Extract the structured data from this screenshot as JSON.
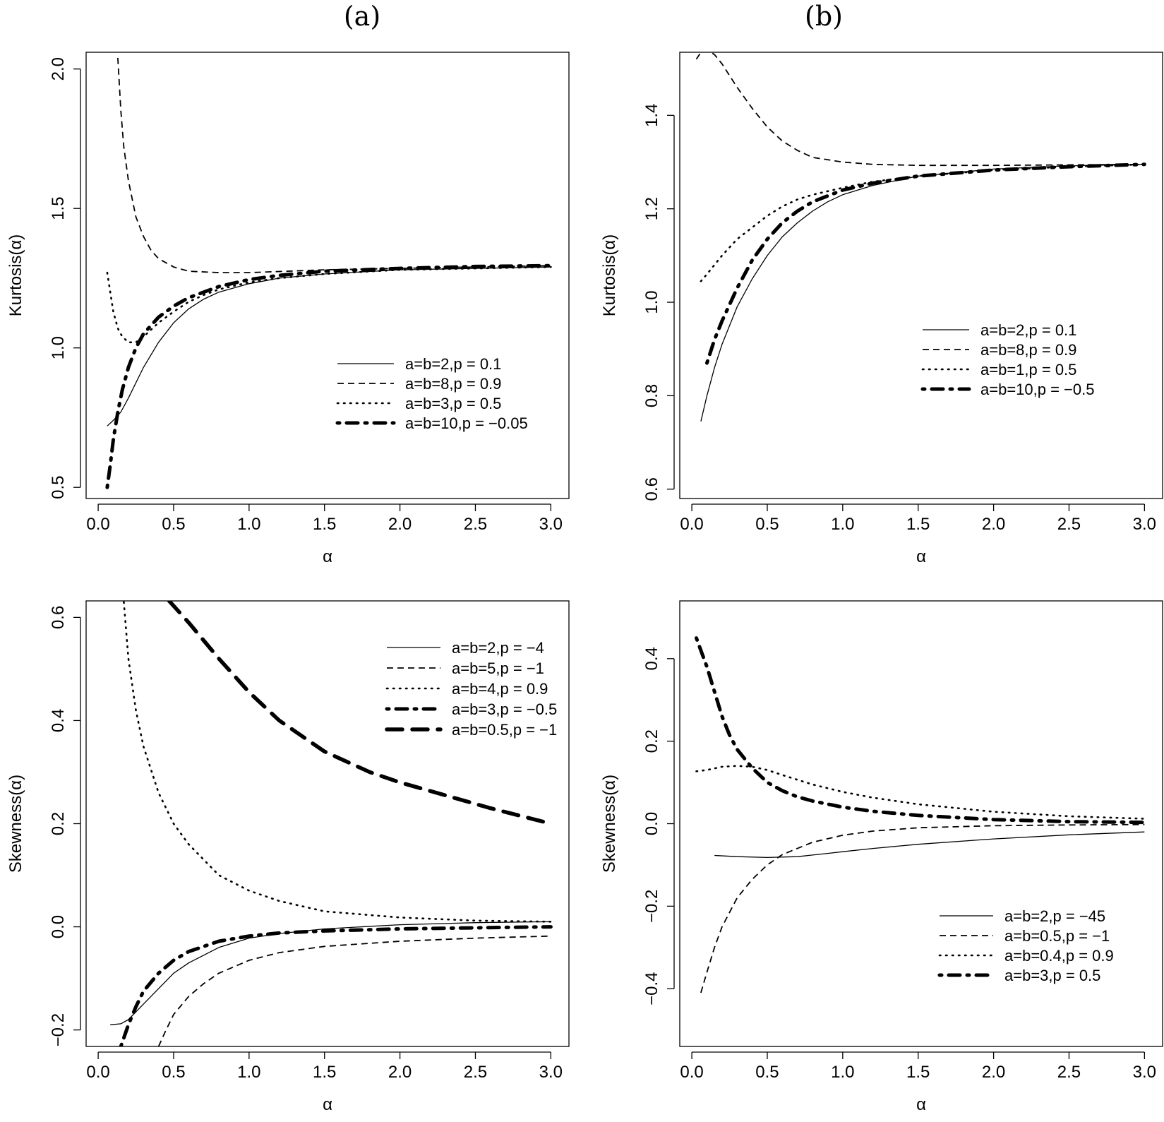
{
  "figure": {
    "panel_titles": [
      "(a)",
      "(b)"
    ]
  },
  "chart_data": [
    {
      "id": "a-top",
      "type": "line",
      "panel": "(a)",
      "xlabel": "α",
      "ylabel": "Kurtosis(α)",
      "xlim": [
        -0.08,
        3.12
      ],
      "ylim": [
        0.46,
        2.06
      ],
      "xticks": [
        "0.0",
        "0.5",
        "1.0",
        "1.5",
        "2.0",
        "2.5",
        "3.0"
      ],
      "yticks": [
        "0.5",
        "1.0",
        "1.5",
        "2.0"
      ],
      "legend_position": "right-middle",
      "series": [
        {
          "name": "a=b=2,p = 0.1",
          "style": "solid",
          "x": [
            0.06,
            0.1,
            0.15,
            0.2,
            0.3,
            0.4,
            0.5,
            0.6,
            0.7,
            0.8,
            1.0,
            1.2,
            1.5,
            2.0,
            2.5,
            3.0
          ],
          "y": [
            0.72,
            0.74,
            0.77,
            0.82,
            0.93,
            1.02,
            1.09,
            1.14,
            1.175,
            1.2,
            1.23,
            1.25,
            1.265,
            1.28,
            1.285,
            1.29
          ]
        },
        {
          "name": "a=b=8,p = 0.9",
          "style": "dashed",
          "x": [
            0.13,
            0.15,
            0.17,
            0.2,
            0.25,
            0.3,
            0.35,
            0.4,
            0.5,
            0.6,
            0.8,
            1.0,
            1.5,
            2.0,
            2.5,
            3.0
          ],
          "y": [
            2.04,
            1.85,
            1.72,
            1.6,
            1.47,
            1.4,
            1.35,
            1.32,
            1.29,
            1.275,
            1.27,
            1.27,
            1.28,
            1.285,
            1.29,
            1.295
          ]
        },
        {
          "name": "a=b=3,p = 0.5",
          "style": "dotted",
          "x": [
            0.06,
            0.08,
            0.1,
            0.13,
            0.16,
            0.2,
            0.25,
            0.3,
            0.4,
            0.5,
            0.6,
            0.7,
            0.8,
            1.0,
            1.2,
            1.5,
            2.0,
            2.5,
            3.0
          ],
          "y": [
            1.27,
            1.2,
            1.13,
            1.07,
            1.04,
            1.02,
            1.02,
            1.04,
            1.09,
            1.13,
            1.165,
            1.19,
            1.21,
            1.235,
            1.25,
            1.265,
            1.28,
            1.285,
            1.29
          ]
        },
        {
          "name": "a=b=10,p = −0.05",
          "style": "dashdot",
          "x": [
            0.06,
            0.08,
            0.1,
            0.13,
            0.16,
            0.2,
            0.25,
            0.3,
            0.4,
            0.5,
            0.6,
            0.7,
            0.8,
            1.0,
            1.2,
            1.5,
            2.0,
            2.5,
            3.0
          ],
          "y": [
            0.5,
            0.58,
            0.67,
            0.77,
            0.85,
            0.93,
            1.0,
            1.05,
            1.11,
            1.15,
            1.18,
            1.2,
            1.22,
            1.245,
            1.26,
            1.275,
            1.285,
            1.292,
            1.295
          ]
        }
      ]
    },
    {
      "id": "b-top",
      "type": "line",
      "panel": "(b)",
      "xlabel": "α",
      "ylabel": "Kurtosis(α)",
      "xlim": [
        -0.08,
        3.12
      ],
      "ylim": [
        0.58,
        1.535
      ],
      "xticks": [
        "0.0",
        "0.5",
        "1.0",
        "1.5",
        "2.0",
        "2.5",
        "3.0"
      ],
      "yticks": [
        "0.6",
        "0.8",
        "1.0",
        "1.2",
        "1.4"
      ],
      "legend_position": "right-middle",
      "series": [
        {
          "name": "a=b=2,p = 0.1",
          "style": "solid",
          "x": [
            0.06,
            0.1,
            0.15,
            0.2,
            0.3,
            0.4,
            0.5,
            0.6,
            0.7,
            0.8,
            0.9,
            1.0,
            1.2,
            1.5,
            2.0,
            2.5,
            3.0
          ],
          "y": [
            0.745,
            0.8,
            0.86,
            0.91,
            0.99,
            1.05,
            1.1,
            1.14,
            1.17,
            1.195,
            1.215,
            1.23,
            1.25,
            1.27,
            1.285,
            1.292,
            1.295
          ]
        },
        {
          "name": "a=b=8,p = 0.9",
          "style": "dashed",
          "x": [
            0.03,
            0.06,
            0.1,
            0.15,
            0.2,
            0.3,
            0.4,
            0.5,
            0.6,
            0.7,
            0.8,
            1.0,
            1.2,
            1.5,
            2.0,
            2.5,
            3.0
          ],
          "y": [
            1.52,
            1.535,
            1.54,
            1.53,
            1.51,
            1.46,
            1.415,
            1.375,
            1.345,
            1.325,
            1.31,
            1.3,
            1.295,
            1.293,
            1.293,
            1.294,
            1.295
          ]
        },
        {
          "name": "a=b=1,p = 0.5",
          "style": "dotted",
          "x": [
            0.06,
            0.1,
            0.15,
            0.2,
            0.3,
            0.4,
            0.5,
            0.6,
            0.7,
            0.8,
            1.0,
            1.2,
            1.5,
            2.0,
            2.5,
            3.0
          ],
          "y": [
            1.045,
            1.06,
            1.08,
            1.1,
            1.135,
            1.16,
            1.185,
            1.205,
            1.22,
            1.23,
            1.245,
            1.258,
            1.27,
            1.283,
            1.29,
            1.295
          ]
        },
        {
          "name": "a=b=10,p = −0.5",
          "style": "dashdot",
          "x": [
            0.1,
            0.15,
            0.2,
            0.3,
            0.4,
            0.5,
            0.6,
            0.7,
            0.8,
            1.0,
            1.2,
            1.5,
            2.0,
            2.5,
            3.0
          ],
          "y": [
            0.87,
            0.92,
            0.96,
            1.03,
            1.09,
            1.135,
            1.17,
            1.195,
            1.215,
            1.24,
            1.255,
            1.27,
            1.283,
            1.29,
            1.295
          ]
        }
      ]
    },
    {
      "id": "a-bottom",
      "type": "line",
      "panel": "(a)",
      "xlabel": "α",
      "ylabel": "Skewness(α)",
      "xlim": [
        -0.08,
        3.12
      ],
      "ylim": [
        -0.232,
        0.632
      ],
      "xticks": [
        "0.0",
        "0.5",
        "1.0",
        "1.5",
        "2.0",
        "2.5",
        "3.0"
      ],
      "yticks": [
        "−0.2",
        "0.0",
        "0.2",
        "0.4",
        "0.6"
      ],
      "legend_position": "top-right",
      "series": [
        {
          "name": "a=b=2,p = −4",
          "style": "solid",
          "x": [
            0.08,
            0.15,
            0.2,
            0.3,
            0.4,
            0.5,
            0.6,
            0.8,
            1.0,
            1.2,
            1.5,
            2.0,
            2.5,
            3.0
          ],
          "y": [
            -0.19,
            -0.188,
            -0.18,
            -0.15,
            -0.12,
            -0.09,
            -0.07,
            -0.04,
            -0.022,
            -0.013,
            -0.004,
            0.004,
            0.008,
            0.01
          ]
        },
        {
          "name": "a=b=5,p = −1",
          "style": "dashed",
          "x": [
            0.4,
            0.45,
            0.5,
            0.6,
            0.7,
            0.8,
            1.0,
            1.2,
            1.5,
            2.0,
            2.5,
            3.0
          ],
          "y": [
            -0.232,
            -0.2,
            -0.17,
            -0.135,
            -0.11,
            -0.09,
            -0.065,
            -0.05,
            -0.038,
            -0.028,
            -0.022,
            -0.018
          ]
        },
        {
          "name": "a=b=4,p = 0.9",
          "style": "dotted",
          "x": [
            0.17,
            0.2,
            0.25,
            0.3,
            0.4,
            0.5,
            0.6,
            0.8,
            1.0,
            1.2,
            1.5,
            2.0,
            2.5,
            3.0
          ],
          "y": [
            0.63,
            0.52,
            0.42,
            0.35,
            0.26,
            0.2,
            0.16,
            0.1,
            0.07,
            0.05,
            0.03,
            0.018,
            0.012,
            0.01
          ]
        },
        {
          "name": "a=b=3,p = −0.5",
          "style": "dashdot",
          "x": [
            0.15,
            0.2,
            0.25,
            0.3,
            0.4,
            0.5,
            0.6,
            0.8,
            1.0,
            1.2,
            1.5,
            2.0,
            2.5,
            3.0
          ],
          "y": [
            -0.232,
            -0.19,
            -0.155,
            -0.125,
            -0.09,
            -0.065,
            -0.048,
            -0.028,
            -0.018,
            -0.012,
            -0.008,
            -0.004,
            -0.002,
            0.0
          ]
        },
        {
          "name": "a=b=0.5,p = −1",
          "style": "longdash",
          "x": [
            0.47,
            0.6,
            0.8,
            1.0,
            1.2,
            1.5,
            1.8,
            2.0,
            2.3,
            2.6,
            2.8,
            3.0
          ],
          "y": [
            0.632,
            0.59,
            0.52,
            0.455,
            0.4,
            0.34,
            0.3,
            0.28,
            0.255,
            0.23,
            0.215,
            0.2
          ]
        }
      ]
    },
    {
      "id": "b-bottom",
      "type": "line",
      "panel": "(b)",
      "xlabel": "α",
      "ylabel": "Skewness(α)",
      "xlim": [
        -0.08,
        3.12
      ],
      "ylim": [
        -0.54,
        0.54
      ],
      "xticks": [
        "0.0",
        "0.5",
        "1.0",
        "1.5",
        "2.0",
        "2.5",
        "3.0"
      ],
      "yticks": [
        "−0.4",
        "−0.2",
        "0.0",
        "0.2",
        "0.4"
      ],
      "legend_position": "bottom-right",
      "series": [
        {
          "name": "a=b=2,p = −45",
          "style": "solid",
          "x": [
            0.15,
            0.3,
            0.5,
            0.7,
            0.9,
            1.0,
            1.2,
            1.5,
            2.0,
            2.5,
            3.0
          ],
          "y": [
            -0.077,
            -0.08,
            -0.082,
            -0.08,
            -0.072,
            -0.068,
            -0.06,
            -0.05,
            -0.037,
            -0.027,
            -0.02
          ]
        },
        {
          "name": "a=b=0.5,p = −1",
          "style": "dashed",
          "x": [
            0.06,
            0.1,
            0.15,
            0.2,
            0.3,
            0.4,
            0.5,
            0.6,
            0.8,
            1.0,
            1.2,
            1.5,
            2.0,
            2.5,
            3.0
          ],
          "y": [
            -0.41,
            -0.36,
            -0.3,
            -0.25,
            -0.18,
            -0.135,
            -0.1,
            -0.075,
            -0.045,
            -0.028,
            -0.018,
            -0.01,
            -0.005,
            -0.003,
            -0.002
          ]
        },
        {
          "name": "a=b=0.4,p = 0.9",
          "style": "dotted",
          "x": [
            0.03,
            0.1,
            0.2,
            0.3,
            0.4,
            0.5,
            0.6,
            0.8,
            1.0,
            1.2,
            1.5,
            2.0,
            2.5,
            3.0
          ],
          "y": [
            0.127,
            0.13,
            0.138,
            0.14,
            0.138,
            0.13,
            0.118,
            0.095,
            0.077,
            0.063,
            0.047,
            0.029,
            0.018,
            0.012
          ]
        },
        {
          "name": "a=b=3,p = 0.5",
          "style": "dashdot",
          "x": [
            0.03,
            0.06,
            0.1,
            0.15,
            0.2,
            0.25,
            0.3,
            0.4,
            0.5,
            0.6,
            0.7,
            0.8,
            1.0,
            1.2,
            1.5,
            2.0,
            2.5,
            3.0
          ],
          "y": [
            0.45,
            0.42,
            0.38,
            0.32,
            0.26,
            0.215,
            0.18,
            0.135,
            0.1,
            0.08,
            0.065,
            0.055,
            0.04,
            0.03,
            0.02,
            0.01,
            0.005,
            0.003
          ]
        }
      ]
    }
  ]
}
